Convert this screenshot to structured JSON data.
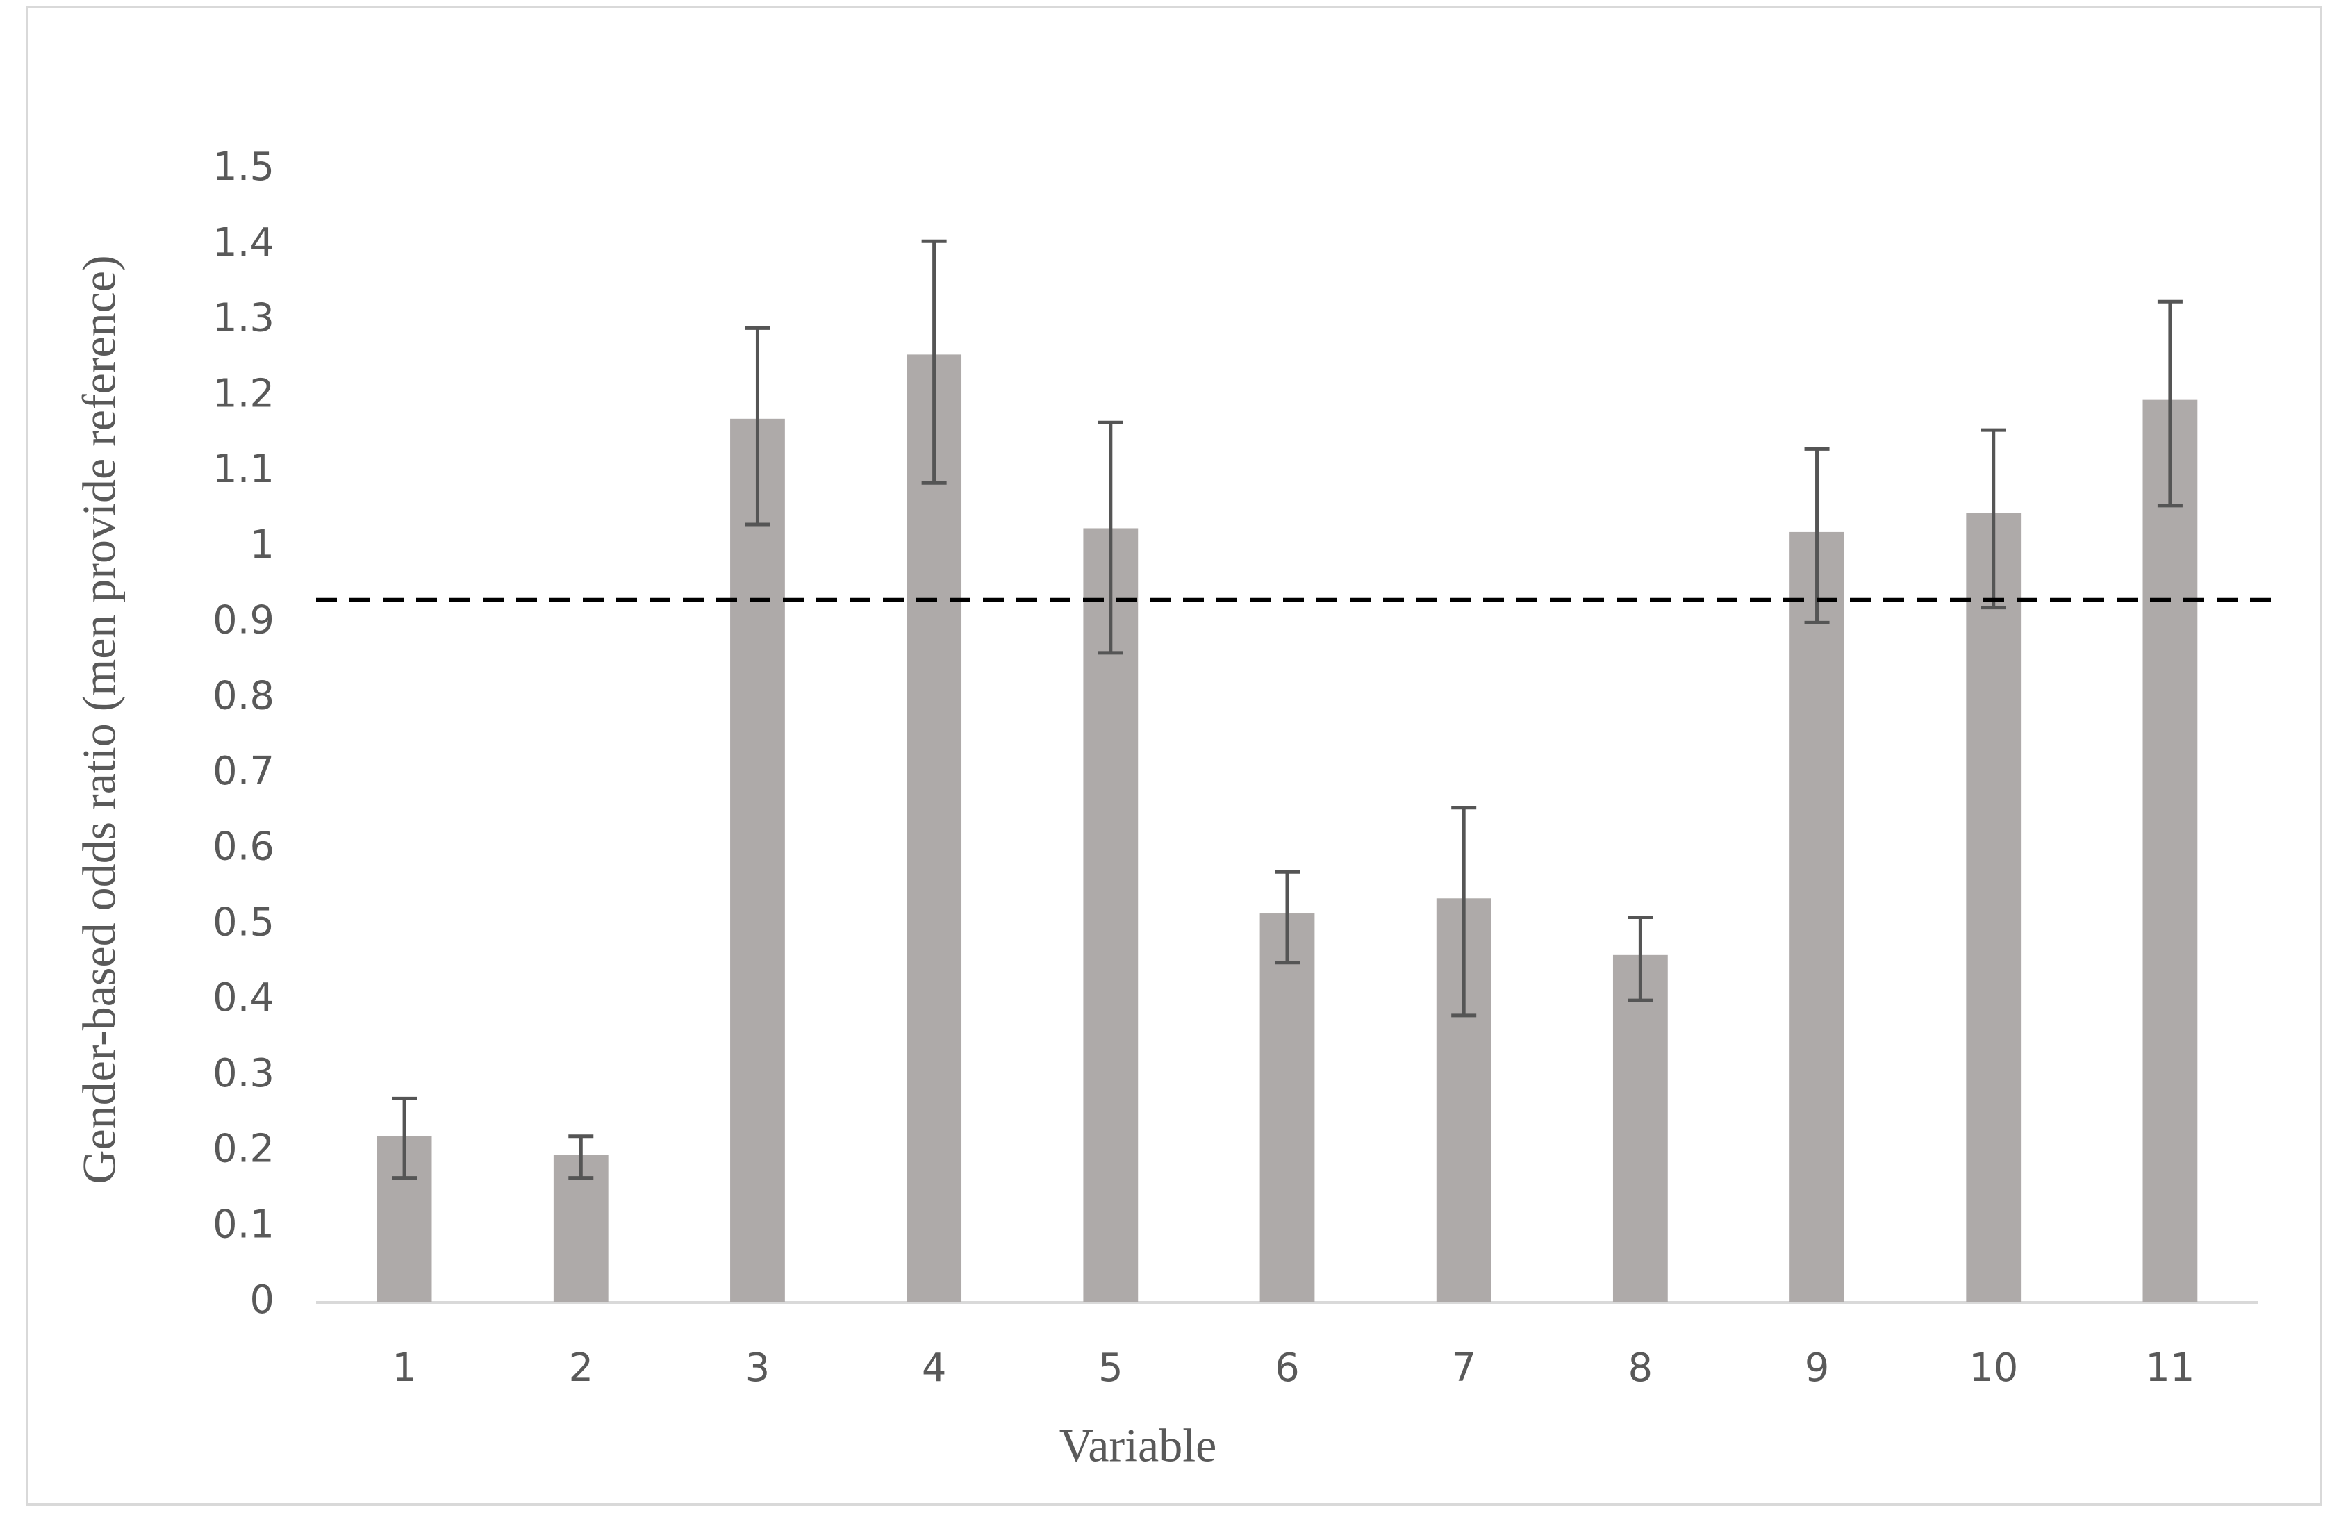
{
  "chart_data": {
    "type": "bar",
    "x_label": "Variable",
    "y_label": "Gender-based odds ratio (men provide reference)",
    "categories": [
      "1",
      "2",
      "3",
      "4",
      "5",
      "6",
      "7",
      "8",
      "9",
      "10",
      "11"
    ],
    "values": [
      0.22,
      0.195,
      1.17,
      1.255,
      1.025,
      0.515,
      0.535,
      0.46,
      1.02,
      1.045,
      1.195
    ],
    "ci_low": [
      0.165,
      0.165,
      1.03,
      1.085,
      0.86,
      0.45,
      0.38,
      0.4,
      0.9,
      0.92,
      1.055
    ],
    "ci_high": [
      0.27,
      0.22,
      1.29,
      1.405,
      1.165,
      0.57,
      0.655,
      0.51,
      1.13,
      1.155,
      1.325
    ],
    "color": "#aeaaa9",
    "error_color": "#555555",
    "reference_line": 0.93,
    "ylim": [
      0,
      1.5
    ],
    "yticks": [
      0,
      0.1,
      0.2,
      0.3,
      0.4,
      0.5,
      0.6,
      0.7,
      0.8,
      0.9,
      1,
      1.1,
      1.2,
      1.3,
      1.4,
      1.5
    ]
  }
}
